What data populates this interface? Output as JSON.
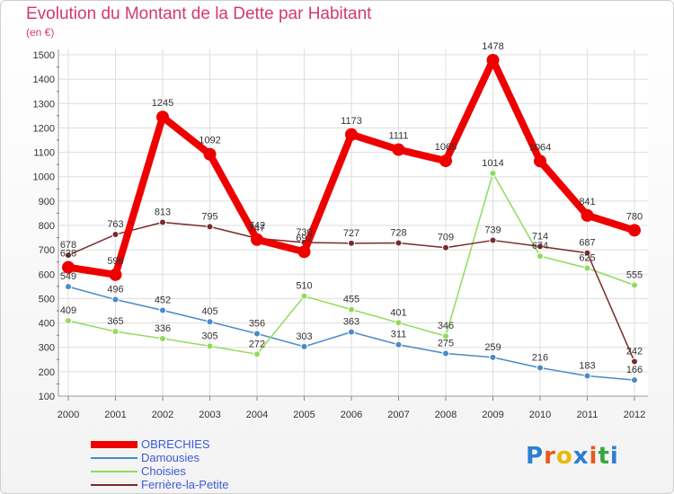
{
  "title": "Evolution du Montant de la Dette par Habitant",
  "unit": "(en €)",
  "logo": "Proxiti",
  "chart_data": {
    "type": "line",
    "categories": [
      "2000",
      "2001",
      "2002",
      "2003",
      "2004",
      "2005",
      "2006",
      "2007",
      "2008",
      "2009",
      "2010",
      "2011",
      "2012"
    ],
    "ylim": [
      100,
      1500
    ],
    "yticks": [
      100,
      200,
      300,
      400,
      500,
      600,
      700,
      800,
      900,
      1000,
      1100,
      1200,
      1300,
      1400,
      1500
    ],
    "grid": true,
    "legend_position": "bottom-left",
    "series": [
      {
        "name": "OBRECHIES",
        "color": "#ee0000",
        "values": [
          628,
          598,
          1245,
          1092,
          742,
          692,
          1173,
          1111,
          1065,
          1478,
          1064,
          841,
          780
        ],
        "labels": [
          "628",
          "598",
          "1245",
          "1092",
          "742",
          "692",
          "1173",
          "1111",
          "1065",
          "1478",
          "1064",
          "841",
          "780"
        ]
      },
      {
        "name": "Damousies",
        "color": "#4a8ac8",
        "values": [
          549,
          496,
          452,
          405,
          356,
          303,
          363,
          311,
          275,
          259,
          216,
          183,
          166
        ],
        "labels": [
          "549",
          "496",
          "452",
          "405",
          "356",
          "303",
          "363",
          "311",
          "275",
          "259",
          "216",
          "183",
          "166"
        ]
      },
      {
        "name": "Choisies",
        "color": "#8fdc5a",
        "values": [
          409,
          365,
          336,
          305,
          272,
          510,
          455,
          401,
          346,
          1014,
          674,
          625,
          555
        ],
        "labels": [
          "409",
          "365",
          "336",
          "305",
          "272",
          "510",
          "455",
          "401",
          "346",
          "1014",
          "674",
          "625",
          "555"
        ]
      },
      {
        "name": "Ferrière-la-Petite",
        "color": "#7a2a2a",
        "values": [
          678,
          763,
          813,
          795,
          747,
          730,
          727,
          728,
          709,
          739,
          714,
          687,
          242
        ],
        "labels": [
          "678",
          "763",
          "813",
          "795",
          "747",
          "730",
          "727",
          "728",
          "709",
          "739",
          "714",
          "687",
          "242"
        ]
      }
    ]
  }
}
